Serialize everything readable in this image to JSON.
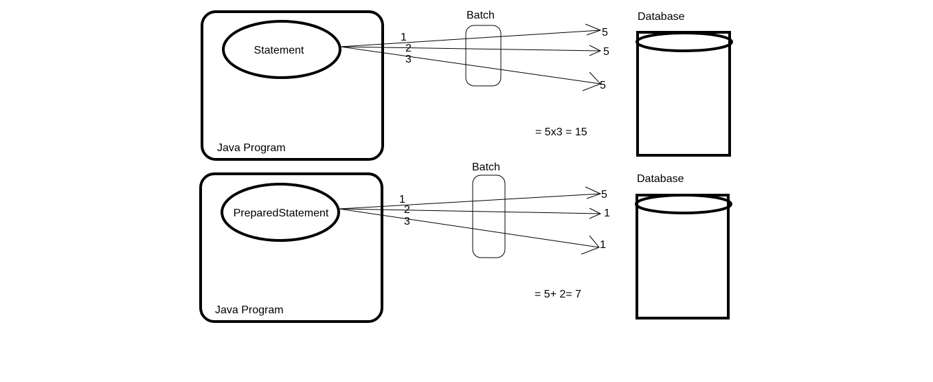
{
  "diagrams": [
    {
      "object_label": "Statement",
      "program_label": "Java Program",
      "batch_label": "Batch",
      "database_label": "Database",
      "arrow_numbers": [
        "1",
        "2",
        "3"
      ],
      "target_values": [
        "5",
        "5",
        "5"
      ],
      "equation": "= 5x3 = 15"
    },
    {
      "object_label": "PreparedStatement",
      "program_label": "Java Program",
      "batch_label": "Batch",
      "database_label": "Database",
      "arrow_numbers": [
        "1",
        "2",
        "3"
      ],
      "target_values": [
        "5",
        "1",
        "1"
      ],
      "equation": "= 5+ 2= 7"
    }
  ]
}
